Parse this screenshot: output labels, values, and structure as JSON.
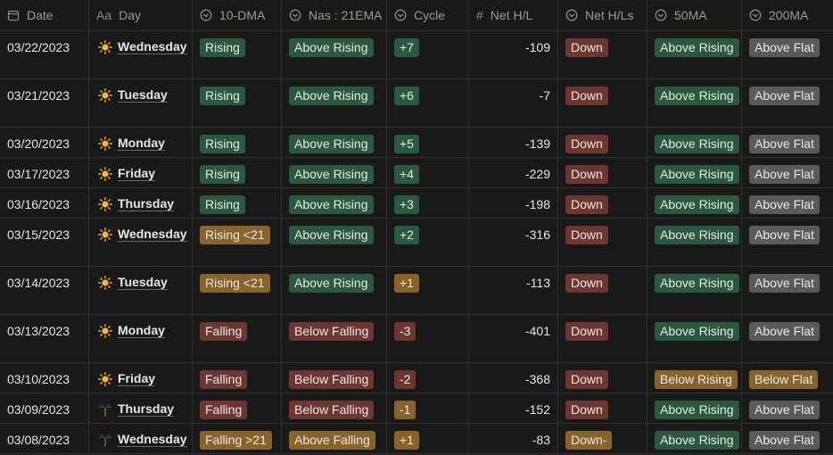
{
  "headers": [
    {
      "icon": "calendar-icon",
      "label": "Date"
    },
    {
      "icon": "title-icon",
      "label": "Day",
      "prefix": "Aa"
    },
    {
      "icon": "select-icon",
      "label": "10-DMA"
    },
    {
      "icon": "select-icon",
      "label": "Nas : 21EMA"
    },
    {
      "icon": "select-icon",
      "label": "Cycle"
    },
    {
      "icon": "number-icon",
      "label": "Net H/L",
      "prefix": "#"
    },
    {
      "icon": "select-icon",
      "label": "Net H/Ls"
    },
    {
      "icon": "select-icon",
      "label": "50MA"
    },
    {
      "icon": "select-icon",
      "label": "200MA"
    }
  ],
  "colors": {
    "green": "#2b593f",
    "red": "#6e3630",
    "orange": "#89632a",
    "gray": "#5a5a5a"
  },
  "rows": [
    {
      "date": "03/22/2023",
      "emoji": "sun-icon",
      "day": "Wednesday",
      "dma10": {
        "text": "Rising",
        "color": "green"
      },
      "ema21": {
        "text": "Above Rising",
        "color": "green"
      },
      "cycle": {
        "text": "+7",
        "color": "green"
      },
      "net": "-109",
      "nethls": {
        "text": "Down",
        "color": "red"
      },
      "ma50": {
        "text": "Above Rising",
        "color": "green"
      },
      "ma200": {
        "text": "Above Flat",
        "color": "gray"
      },
      "tall": true
    },
    {
      "date": "03/21/2023",
      "emoji": "sun-icon",
      "day": "Tuesday",
      "dma10": {
        "text": "Rising",
        "color": "green"
      },
      "ema21": {
        "text": "Above Rising",
        "color": "green"
      },
      "cycle": {
        "text": "+6",
        "color": "green"
      },
      "net": "-7",
      "nethls": {
        "text": "Down",
        "color": "red"
      },
      "ma50": {
        "text": "Above Rising",
        "color": "green"
      },
      "ma200": {
        "text": "Above Flat",
        "color": "gray"
      },
      "tall": true
    },
    {
      "date": "03/20/2023",
      "emoji": "sun-icon",
      "day": "Monday",
      "dma10": {
        "text": "Rising",
        "color": "green"
      },
      "ema21": {
        "text": "Above Rising",
        "color": "green"
      },
      "cycle": {
        "text": "+5",
        "color": "green"
      },
      "net": "-139",
      "nethls": {
        "text": "Down",
        "color": "red"
      },
      "ma50": {
        "text": "Above Rising",
        "color": "green"
      },
      "ma200": {
        "text": "Above Flat",
        "color": "gray"
      },
      "tall": false
    },
    {
      "date": "03/17/2023",
      "emoji": "sun-icon",
      "day": "Friday",
      "dma10": {
        "text": "Rising",
        "color": "green"
      },
      "ema21": {
        "text": "Above Rising",
        "color": "green"
      },
      "cycle": {
        "text": "+4",
        "color": "green"
      },
      "net": "-229",
      "nethls": {
        "text": "Down",
        "color": "red"
      },
      "ma50": {
        "text": "Above Rising",
        "color": "green"
      },
      "ma200": {
        "text": "Above Flat",
        "color": "gray"
      },
      "tall": false
    },
    {
      "date": "03/16/2023",
      "emoji": "sun-icon",
      "day": "Thursday",
      "dma10": {
        "text": "Rising",
        "color": "green"
      },
      "ema21": {
        "text": "Above Rising",
        "color": "green"
      },
      "cycle": {
        "text": "+3",
        "color": "green"
      },
      "net": "-198",
      "nethls": {
        "text": "Down",
        "color": "red"
      },
      "ma50": {
        "text": "Above Rising",
        "color": "green"
      },
      "ma200": {
        "text": "Above Flat",
        "color": "gray"
      },
      "tall": false
    },
    {
      "date": "03/15/2023",
      "emoji": "sun-icon",
      "day": "Wednesday",
      "dma10": {
        "text": "Rising <21",
        "color": "orange"
      },
      "ema21": {
        "text": "Above Rising",
        "color": "green"
      },
      "cycle": {
        "text": "+2",
        "color": "green"
      },
      "net": "-316",
      "nethls": {
        "text": "Down",
        "color": "red"
      },
      "ma50": {
        "text": "Above Rising",
        "color": "green"
      },
      "ma200": {
        "text": "Above Flat",
        "color": "gray"
      },
      "tall": true
    },
    {
      "date": "03/14/2023",
      "emoji": "sun-icon",
      "day": "Tuesday",
      "dma10": {
        "text": "Rising <21",
        "color": "orange"
      },
      "ema21": {
        "text": "Above Rising",
        "color": "green"
      },
      "cycle": {
        "text": "+1",
        "color": "orange"
      },
      "net": "-113",
      "nethls": {
        "text": "Down",
        "color": "red"
      },
      "ma50": {
        "text": "Above Rising",
        "color": "green"
      },
      "ma200": {
        "text": "Above Flat",
        "color": "gray"
      },
      "tall": true
    },
    {
      "date": "03/13/2023",
      "emoji": "sun-icon",
      "day": "Monday",
      "dma10": {
        "text": "Falling",
        "color": "red"
      },
      "ema21": {
        "text": "Below Falling",
        "color": "red"
      },
      "cycle": {
        "text": "-3",
        "color": "red"
      },
      "net": "-401",
      "nethls": {
        "text": "Down",
        "color": "red"
      },
      "ma50": {
        "text": "Above Rising",
        "color": "green"
      },
      "ma200": {
        "text": "Above Flat",
        "color": "gray"
      },
      "tall": true
    },
    {
      "date": "03/10/2023",
      "emoji": "sun-icon",
      "day": "Friday",
      "dma10": {
        "text": "Falling",
        "color": "red"
      },
      "ema21": {
        "text": "Below Falling",
        "color": "red"
      },
      "cycle": {
        "text": "-2",
        "color": "red"
      },
      "net": "-368",
      "nethls": {
        "text": "Down",
        "color": "red"
      },
      "ma50": {
        "text": "Below Rising",
        "color": "orange"
      },
      "ma200": {
        "text": "Below Flat",
        "color": "orange"
      },
      "tall": false
    },
    {
      "date": "03/09/2023",
      "emoji": "palm-tree-icon",
      "day": "Thursday",
      "dma10": {
        "text": "Falling",
        "color": "red"
      },
      "ema21": {
        "text": "Below Falling",
        "color": "red"
      },
      "cycle": {
        "text": "-1",
        "color": "orange"
      },
      "net": "-152",
      "nethls": {
        "text": "Down",
        "color": "red"
      },
      "ma50": {
        "text": "Above Rising",
        "color": "green"
      },
      "ma200": {
        "text": "Above Flat",
        "color": "gray"
      },
      "tall": false
    },
    {
      "date": "03/08/2023",
      "emoji": "palm-tree-icon",
      "day": "Wednesday",
      "dma10": {
        "text": "Falling >21",
        "color": "orange"
      },
      "ema21": {
        "text": "Above Falling",
        "color": "orange"
      },
      "cycle": {
        "text": "+1",
        "color": "orange"
      },
      "net": "-83",
      "nethls": {
        "text": "Down-",
        "color": "orange"
      },
      "ma50": {
        "text": "Above Rising",
        "color": "green"
      },
      "ma200": {
        "text": "Above Flat",
        "color": "gray"
      },
      "tall": false
    }
  ]
}
